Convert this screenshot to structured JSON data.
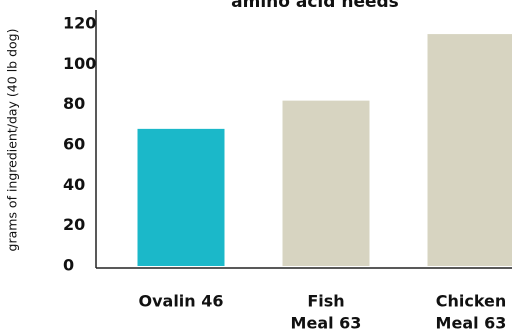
{
  "chart_data": {
    "type": "bar",
    "title": "amino acid needs",
    "y_label": "grams of ingredient/day (40 lb dog)",
    "categories": [
      [
        "Ovalin 46"
      ],
      [
        "Fish",
        "Meal 63"
      ],
      [
        "Chicken",
        "Meal 63"
      ]
    ],
    "values": [
      68,
      82,
      115
    ],
    "colors": [
      "#1bb8c9",
      "#d7d4c1",
      "#d7d4c1"
    ],
    "ylim": [
      0,
      120
    ],
    "yticks": [
      0,
      20,
      40,
      60,
      80,
      100,
      120
    ],
    "grid": false
  }
}
